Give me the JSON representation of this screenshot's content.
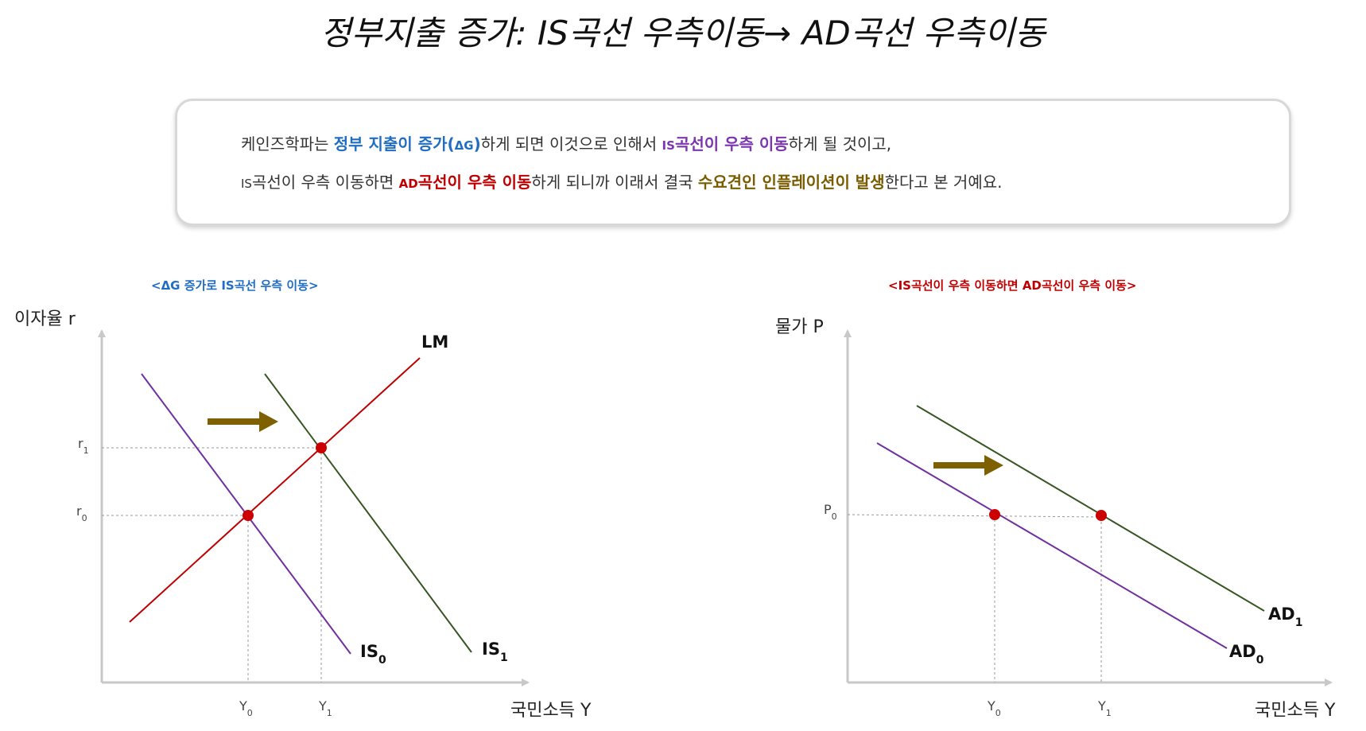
{
  "title": "정부지출 증가: IS곡선 우측이동→ AD곡선 우측이동",
  "info": {
    "line1": [
      {
        "text": "케인즈학파는 ",
        "style": "normal"
      },
      {
        "text": "정부 지출이 증가(",
        "style": "blue"
      },
      {
        "text": "ΔG",
        "style": "blue-small"
      },
      {
        "text": ")",
        "style": "blue"
      },
      {
        "text": "하게 되면 이것으로 인해서 ",
        "style": "normal"
      },
      {
        "text": "IS",
        "style": "purple-small"
      },
      {
        "text": "곡선이 우측 이동",
        "style": "purple"
      },
      {
        "text": "하게 될 것이고,",
        "style": "normal"
      }
    ],
    "line2": [
      {
        "text": "IS",
        "style": "normal-small"
      },
      {
        "text": "곡선이 우측 이동하면 ",
        "style": "normal"
      },
      {
        "text": "AD",
        "style": "red-small"
      },
      {
        "text": "곡선이 우측 이동",
        "style": "red"
      },
      {
        "text": "하게 되니까 이래서 결국 ",
        "style": "normal"
      },
      {
        "text": "수요견인 인플레이션이 발생",
        "style": "olive"
      },
      {
        "text": "한다고 본 거예요.",
        "style": "normal"
      }
    ]
  },
  "captions": {
    "left": "<ΔG 증가로 IS곡선 우측 이동>",
    "right": "<IS곡선이 우측 이동하면 AD곡선이 우측 이동>"
  },
  "colors": {
    "lm": "#c00000",
    "is0": "#7030a0",
    "is1": "#375623",
    "ad0": "#7030a0",
    "ad1": "#375623",
    "point": "#cc0000",
    "arrow": "#7f6000",
    "axis": "#bfbfbf"
  },
  "left_diagram": {
    "y_axis_title": "이자율 r",
    "x_axis_title": "국민소득 Y",
    "y_ticks": [
      {
        "base": "r",
        "sub": "1"
      },
      {
        "base": "r",
        "sub": "0"
      }
    ],
    "x_ticks": [
      {
        "base": "Y",
        "sub": "0"
      },
      {
        "base": "Y",
        "sub": "1"
      }
    ],
    "curves": [
      {
        "base": "LM",
        "sub": ""
      },
      {
        "base": "IS",
        "sub": "0"
      },
      {
        "base": "IS",
        "sub": "1"
      }
    ],
    "shift_arrow": "right"
  },
  "right_diagram": {
    "y_axis_title": "물가 P",
    "x_axis_title": "국민소득 Y",
    "y_ticks": [
      {
        "base": "P",
        "sub": "0"
      }
    ],
    "x_ticks": [
      {
        "base": "Y",
        "sub": "0"
      },
      {
        "base": "Y",
        "sub": "1"
      }
    ],
    "curves": [
      {
        "base": "AD",
        "sub": "1"
      },
      {
        "base": "AD",
        "sub": "0"
      }
    ],
    "shift_arrow": "right"
  }
}
